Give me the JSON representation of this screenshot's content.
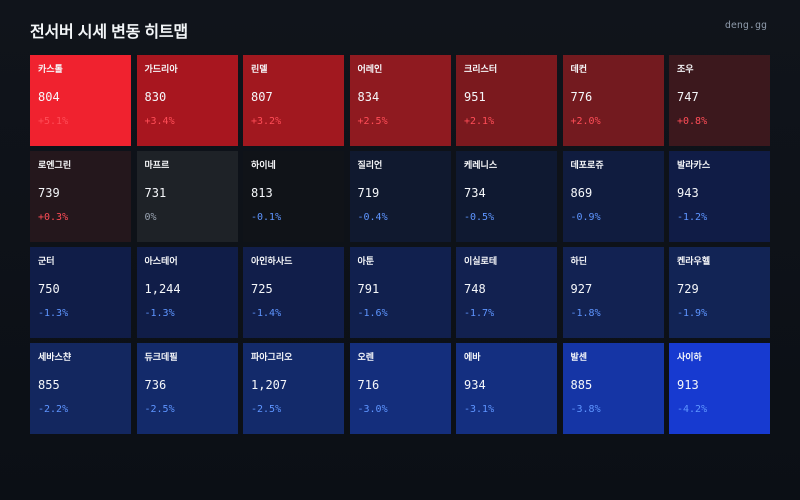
{
  "header": {
    "title": "전서버 시세 변동 히트맵",
    "site": "deng.gg"
  },
  "heatmap": {
    "cells": [
      {
        "name": "카스톨",
        "price": "804",
        "change": "+5.1%",
        "trend": "up",
        "color": "#f0222f"
      },
      {
        "name": "가드리아",
        "price": "830",
        "change": "+3.4%",
        "trend": "up",
        "color": "#a8161f"
      },
      {
        "name": "린델",
        "price": "807",
        "change": "+3.2%",
        "trend": "up",
        "color": "#a1181f"
      },
      {
        "name": "어레인",
        "price": "834",
        "change": "+2.5%",
        "trend": "up",
        "color": "#8f1a20"
      },
      {
        "name": "크리스터",
        "price": "951",
        "change": "+2.1%",
        "trend": "up",
        "color": "#7b191e"
      },
      {
        "name": "데컨",
        "price": "776",
        "change": "+2.0%",
        "trend": "up",
        "color": "#731a1f"
      },
      {
        "name": "조우",
        "price": "747",
        "change": "+0.8%",
        "trend": "up",
        "color": "#3c181d"
      },
      {
        "name": "로엔그린",
        "price": "739",
        "change": "+0.3%",
        "trend": "up",
        "color": "#24171c"
      },
      {
        "name": "마프르",
        "price": "731",
        "change": "0%",
        "trend": "flat",
        "color": "#1e2227"
      },
      {
        "name": "하이네",
        "price": "813",
        "change": "-0.1%",
        "trend": "down",
        "color": "#101318"
      },
      {
        "name": "질리언",
        "price": "719",
        "change": "-0.4%",
        "trend": "down",
        "color": "#10192f"
      },
      {
        "name": "케레니스",
        "price": "734",
        "change": "-0.5%",
        "trend": "down",
        "color": "#0f1931"
      },
      {
        "name": "데포로쥬",
        "price": "869",
        "change": "-0.9%",
        "trend": "down",
        "color": "#101c3f"
      },
      {
        "name": "발라카스",
        "price": "943",
        "change": "-1.2%",
        "trend": "down",
        "color": "#101c46"
      },
      {
        "name": "군터",
        "price": "750",
        "change": "-1.3%",
        "trend": "down",
        "color": "#101d48"
      },
      {
        "name": "아스테어",
        "price": "1,244",
        "change": "-1.3%",
        "trend": "down",
        "color": "#101d48"
      },
      {
        "name": "아인하사드",
        "price": "725",
        "change": "-1.4%",
        "trend": "down",
        "color": "#111e4a"
      },
      {
        "name": "아툰",
        "price": "791",
        "change": "-1.6%",
        "trend": "down",
        "color": "#11204e"
      },
      {
        "name": "이실로테",
        "price": "748",
        "change": "-1.7%",
        "trend": "down",
        "color": "#122150"
      },
      {
        "name": "하딘",
        "price": "927",
        "change": "-1.8%",
        "trend": "down",
        "color": "#122252"
      },
      {
        "name": "켄라우헬",
        "price": "729",
        "change": "-1.9%",
        "trend": "down",
        "color": "#122455"
      },
      {
        "name": "세바스챤",
        "price": "855",
        "change": "-2.2%",
        "trend": "down",
        "color": "#13275f"
      },
      {
        "name": "듀크데필",
        "price": "736",
        "change": "-2.5%",
        "trend": "down",
        "color": "#132a6a"
      },
      {
        "name": "파아그리오",
        "price": "1,207",
        "change": "-2.5%",
        "trend": "down",
        "color": "#132a6a"
      },
      {
        "name": "오렌",
        "price": "716",
        "change": "-3.0%",
        "trend": "down",
        "color": "#142e7c"
      },
      {
        "name": "에바",
        "price": "934",
        "change": "-3.1%",
        "trend": "down",
        "color": "#142f80"
      },
      {
        "name": "발센",
        "price": "885",
        "change": "-3.8%",
        "trend": "down",
        "color": "#1535a5"
      },
      {
        "name": "사이하",
        "price": "913",
        "change": "-4.2%",
        "trend": "down",
        "color": "#173ad0"
      }
    ]
  }
}
